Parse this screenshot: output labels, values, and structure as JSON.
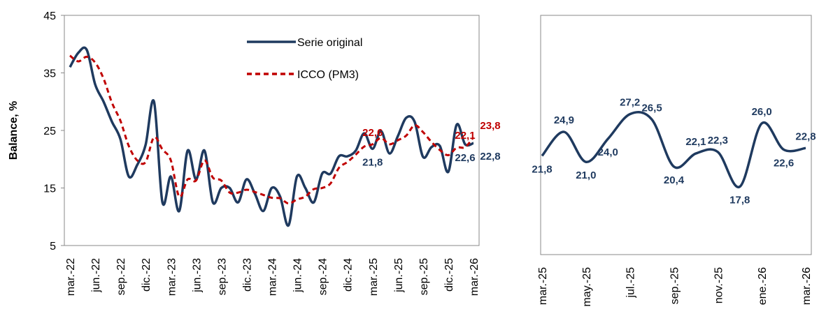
{
  "chart_data": [
    {
      "type": "line",
      "y_label": "Balance, %",
      "ylim": [
        5,
        45
      ],
      "yticks": [
        5,
        15,
        25,
        35,
        45
      ],
      "legend": "upper center",
      "categories": [
        "mar.-22",
        null,
        null,
        "jun.-22",
        null,
        null,
        "sep.-22",
        null,
        null,
        "dic.-22",
        null,
        null,
        "mar.-23",
        null,
        null,
        "jun.-23",
        null,
        null,
        "sep.-23",
        null,
        null,
        "dic.-23",
        null,
        null,
        "mar.-24",
        null,
        null,
        "jun.-24",
        null,
        null,
        "sep.-24",
        null,
        null,
        "dic.-24",
        null,
        null,
        "mar.-25",
        null,
        null,
        "jun.-25",
        null,
        null,
        "sep.-25",
        null,
        null,
        "dic.-25",
        null,
        null,
        "mar.-26"
      ],
      "series": [
        {
          "name": "Serie original",
          "color": "#1f3a5f",
          "dashed": false,
          "values": [
            36,
            38.5,
            39,
            33,
            30,
            26.5,
            23.5,
            17,
            19,
            22.5,
            30,
            12.5,
            17,
            11,
            21.5,
            16.5,
            21.5,
            12.5,
            15,
            15,
            12.5,
            16.5,
            14,
            11,
            15,
            13.5,
            8.5,
            17,
            15,
            12.5,
            17.5,
            17.5,
            20.5,
            20.5,
            21.5,
            24.5,
            21.8,
            24.9,
            21.0,
            24.0,
            27.2,
            26.5,
            20.4,
            22.1,
            22.3,
            17.8,
            26.0,
            22.6,
            22.8
          ],
          "value_labels": [
            null,
            null,
            null,
            null,
            null,
            null,
            null,
            null,
            null,
            null,
            null,
            null,
            null,
            null,
            null,
            null,
            null,
            null,
            null,
            null,
            null,
            null,
            null,
            null,
            null,
            null,
            null,
            null,
            null,
            null,
            null,
            null,
            null,
            null,
            null,
            null,
            "21,8",
            null,
            null,
            null,
            null,
            null,
            null,
            null,
            null,
            null,
            null,
            "22,6",
            "22,8"
          ]
        },
        {
          "name": "ICCO (PM3)",
          "color": "#c00000",
          "dashed": true,
          "values": [
            38,
            37,
            37.8,
            36.8,
            34,
            29.8,
            26.7,
            22.3,
            19.8,
            19.5,
            23.8,
            21.7,
            19.8,
            13.5,
            16.5,
            16.3,
            19.8,
            16.8,
            16.3,
            14.2,
            14.2,
            14.7,
            14.3,
            13.8,
            13.3,
            13.2,
            12.3,
            13,
            13.5,
            14.8,
            15,
            15.8,
            18.5,
            19.5,
            20.8,
            22.2,
            22.6,
            23.7,
            22.6,
            23.3,
            24.1,
            25.9,
            24.7,
            23,
            21.6,
            20.7,
            22,
            22.1,
            23.8
          ],
          "value_labels": [
            null,
            null,
            null,
            null,
            null,
            null,
            null,
            null,
            null,
            null,
            null,
            null,
            null,
            null,
            null,
            null,
            null,
            null,
            null,
            null,
            null,
            null,
            null,
            null,
            null,
            null,
            null,
            null,
            null,
            null,
            null,
            null,
            null,
            null,
            null,
            null,
            "22,6",
            null,
            null,
            null,
            null,
            null,
            null,
            null,
            null,
            null,
            null,
            "22,1",
            "23,8"
          ]
        }
      ]
    },
    {
      "type": "line",
      "ylim": [
        9,
        40
      ],
      "categories": [
        "mar.-25",
        null,
        "may.-25",
        null,
        "jul.-25",
        null,
        "sep.-25",
        null,
        "nov.-25",
        null,
        "ene.-26",
        null,
        "mar.-26"
      ],
      "series": [
        {
          "color": "#1f3a5f",
          "values": [
            21.8,
            24.9,
            21.0,
            24.0,
            27.2,
            26.5,
            20.4,
            22.1,
            22.3,
            17.8,
            26.0,
            22.6,
            22.8
          ],
          "value_labels": [
            "21,8",
            "24,9",
            "21,0",
            "24,0",
            "27,2",
            "26,5",
            "20,4",
            "22,1",
            "22,3",
            "17,8",
            "26,0",
            "22,6",
            "22,8"
          ]
        }
      ]
    }
  ]
}
